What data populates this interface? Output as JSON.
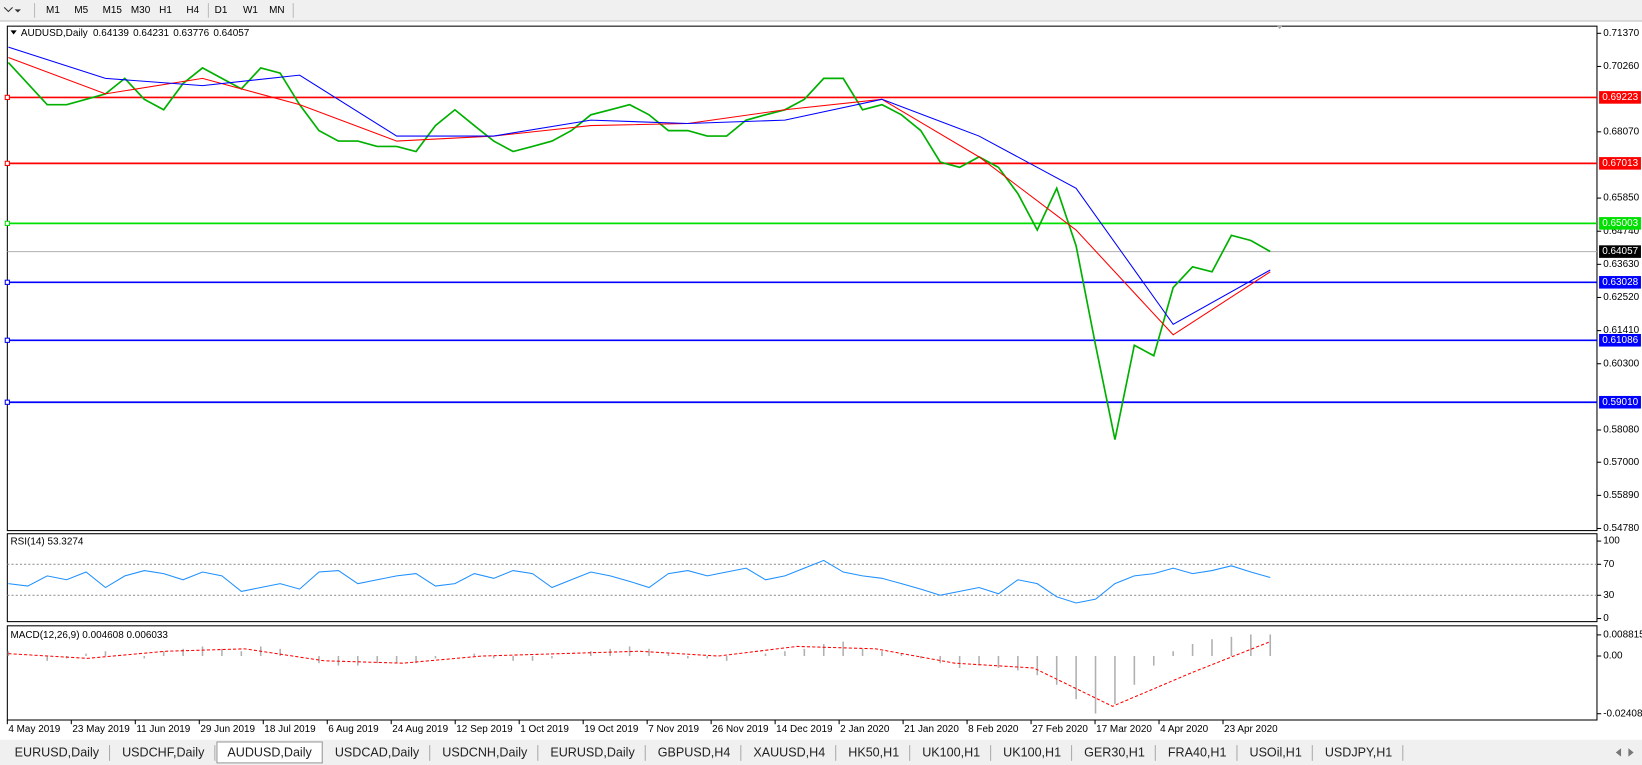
{
  "toolbar": {
    "timeframes": [
      "M1",
      "M5",
      "M15",
      "M30",
      "H1",
      "H4",
      "D1",
      "W1",
      "MN"
    ]
  },
  "chart_data": [
    {
      "type": "line",
      "title": "AUDUSD,Daily",
      "quote": [
        0.64139,
        0.64231,
        0.63776,
        0.64057
      ],
      "ylim": [
        0.5471,
        0.7161
      ],
      "yticks": [
        {
          "value": 0.7137,
          "label": "0.71370"
        },
        {
          "value": 0.7026,
          "label": "0.70260"
        },
        {
          "value": 0.6807,
          "label": "0.68070"
        },
        {
          "value": 0.6585,
          "label": "0.65850"
        },
        {
          "value": 0.6474,
          "label": "0.64740"
        },
        {
          "value": 0.6363,
          "label": "0.63630"
        },
        {
          "value": 0.6252,
          "label": "0.62520"
        },
        {
          "value": 0.6141,
          "label": "0.61410"
        },
        {
          "value": 0.603,
          "label": "0.60300"
        },
        {
          "value": 0.5808,
          "label": "0.58080"
        },
        {
          "value": 0.57,
          "label": "0.57000"
        },
        {
          "value": 0.5589,
          "label": "0.55890"
        },
        {
          "value": 0.5478,
          "label": "0.54780"
        }
      ],
      "levels": [
        {
          "value": 0.69223,
          "color": "#ff0000"
        },
        {
          "value": 0.67013,
          "color": "#ff0000"
        },
        {
          "value": 0.65003,
          "color": "#00e000"
        },
        {
          "value": 0.63028,
          "color": "#0000ff"
        },
        {
          "value": 0.61086,
          "color": "#0000ff"
        },
        {
          "value": 0.5901,
          "label": "0.59010",
          "color": "#0000ff"
        }
      ],
      "series": [
        {
          "color": "#00b000",
          "values": [
            0.7039,
            0.6969,
            0.6898,
            0.6898,
            0.6916,
            0.6934,
            0.6986,
            0.6916,
            0.6881,
            0.6969,
            0.7021,
            0.6986,
            0.6951,
            0.7021,
            0.7004,
            0.6898,
            0.6811,
            0.6776,
            0.6776,
            0.6758,
            0.6758,
            0.6741,
            0.6828,
            0.6881,
            0.6828,
            0.6776,
            0.6741,
            0.6758,
            0.6776,
            0.6811,
            0.6864,
            0.6881,
            0.6898,
            0.6864,
            0.6811,
            0.6811,
            0.6793,
            0.6793,
            0.6846,
            0.6864,
            0.6881,
            0.6916,
            0.6986,
            0.6986,
            0.6881,
            0.6898,
            0.6864,
            0.6811,
            0.6706,
            0.6688,
            0.6723,
            0.6688,
            0.66,
            0.6478,
            0.6618,
            0.6425,
            0.6092,
            0.5776,
            0.6092,
            0.6057,
            0.6285,
            0.6355,
            0.6338,
            0.646,
            0.6443,
            0.6406
          ]
        },
        {
          "color": "#ff0000",
          "values": [
            0.7056,
            0.6934,
            0.6986,
            0.6898,
            0.6776,
            0.6793,
            0.6828,
            0.6835,
            0.6881,
            0.6916,
            0.6723,
            0.6478,
            0.6127,
            0.6338
          ]
        },
        {
          "color": "#0000ff",
          "values": [
            0.7091,
            0.6986,
            0.6962,
            0.6997,
            0.6793,
            0.6793,
            0.6846,
            0.6835,
            0.6846,
            0.6916,
            0.6793,
            0.6618,
            0.6162,
            0.6344
          ]
        }
      ]
    },
    {
      "type": "line",
      "title": "RSI(14) 53.3274",
      "ylim": [
        -4,
        109.5
      ],
      "yticks": [
        100,
        70,
        30,
        0
      ],
      "levels": [
        70,
        30
      ],
      "series": [
        {
          "color": "#1e90ff",
          "values": [
            45,
            42,
            55,
            50,
            60,
            40,
            55,
            62,
            58,
            50,
            60,
            55,
            35,
            40,
            45,
            38,
            60,
            62,
            45,
            50,
            55,
            58,
            42,
            45,
            58,
            52,
            62,
            58,
            40,
            50,
            60,
            55,
            48,
            40,
            58,
            62,
            55,
            60,
            65,
            50,
            55,
            65,
            75,
            60,
            55,
            52,
            45,
            38,
            30,
            35,
            40,
            32,
            50,
            45,
            28,
            20,
            25,
            45,
            55,
            58,
            65,
            58,
            62,
            68,
            60,
            53
          ]
        }
      ]
    },
    {
      "type": "macd",
      "title": "MACD(12,26,9) 0.004608 0.006033",
      "ylim": [
        -0.0267,
        0.0126
      ],
      "yticks": [
        0.008815,
        {
          "value": 0,
          "label": "0.00"
        },
        -0.024082
      ],
      "series": [
        {
          "type": "bar",
          "color": "#b0b0b0",
          "values": [
            0.002,
            0.0,
            -0.002,
            -0.001,
            0.001,
            0.002,
            0.0,
            -0.001,
            0.002,
            0.003,
            0.004,
            0.003,
            0.002,
            0.004,
            0.003,
            0.0,
            -0.003,
            -0.004,
            -0.004,
            -0.003,
            -0.003,
            -0.003,
            -0.001,
            0.0,
            0.001,
            -0.001,
            -0.002,
            -0.002,
            -0.001,
            0.0,
            0.002,
            0.003,
            0.004,
            0.003,
            0.001,
            -0.001,
            -0.001,
            -0.002,
            0.0,
            0.001,
            0.002,
            0.003,
            0.005,
            0.006,
            0.003,
            0.002,
            0.001,
            -0.001,
            -0.003,
            -0.005,
            -0.004,
            -0.005,
            -0.006,
            -0.008,
            -0.012,
            -0.018,
            -0.024,
            -0.02,
            -0.012,
            -0.004,
            0.002,
            0.005,
            0.007,
            0.008,
            0.009,
            0.009
          ]
        },
        {
          "type": "dashed",
          "color": "#ff0000",
          "values": [
            0.001,
            -0.001,
            0.002,
            0.003,
            -0.002,
            -0.003,
            0.0,
            0.001,
            0.002,
            0.0,
            0.004,
            0.003,
            -0.003,
            -0.005,
            -0.021,
            -0.007,
            0.006
          ]
        }
      ]
    }
  ],
  "time_axis": {
    "labels": [
      "4 May 2019",
      "23 May 2019",
      "11 Jun 2019",
      "29 Jun 2019",
      "18 Jul 2019",
      "6 Aug 2019",
      "24 Aug 2019",
      "12 Sep 2019",
      "1 Oct 2019",
      "19 Oct 2019",
      "7 Nov 2019",
      "26 Nov 2019",
      "14 Dec 2019",
      "2 Jan 2020",
      "21 Jan 2020",
      "8 Feb 2020",
      "27 Feb 2020",
      "17 Mar 2020",
      "4 Apr 2020",
      "23 Apr 2020"
    ]
  },
  "tabs": {
    "items": [
      "EURUSD,Daily",
      "USDCHF,Daily",
      "AUDUSD,Daily",
      "USDCAD,Daily",
      "USDCNH,Daily",
      "EURUSD,Daily",
      "GBPUSD,H4",
      "XAUUSD,H4",
      "HK50,H1",
      "UK100,H1",
      "UK100,H1",
      "GER30,H1",
      "FRA40,H1",
      "USOil,H1",
      "USDJPY,H1"
    ],
    "active": 2
  }
}
